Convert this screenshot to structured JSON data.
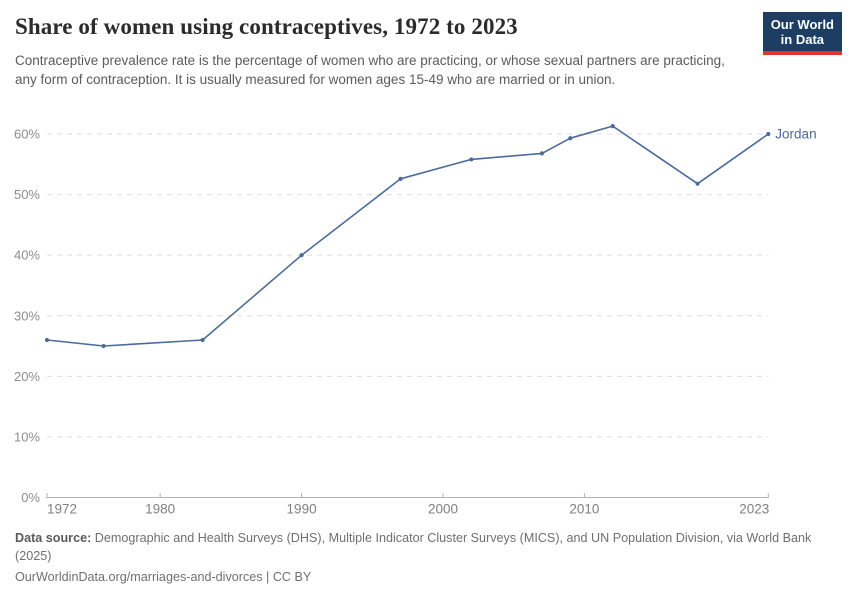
{
  "header": {
    "title": "Share of women using contraceptives, 1972 to 2023",
    "subtitle": "Contraceptive prevalence rate is the percentage of women who are practicing, or whose sexual partners are practicing, any form of contraception. It is usually measured for women ages 15-49 who are married or in union.",
    "logo": {
      "line1": "Our World",
      "line2": "in Data",
      "bg_color": "#1d3d63",
      "accent_color": "#e0342f"
    }
  },
  "chart_data": {
    "type": "line",
    "title": "Share of women using contraceptives, 1972 to 2023",
    "x": [
      1972,
      1976,
      1983,
      1990,
      1997,
      2002,
      2007,
      2009,
      2012,
      2018,
      2023
    ],
    "series": [
      {
        "name": "Jordan",
        "color": "#4c6a9c",
        "values": [
          26,
          25,
          26,
          40,
          52.6,
          55.8,
          56.8,
          59.3,
          61.3,
          51.8,
          60
        ]
      }
    ],
    "xlabel": "",
    "ylabel": "",
    "x_ticks": [
      1972,
      1980,
      1990,
      2000,
      2010,
      2023
    ],
    "y_ticks": [
      0,
      10,
      20,
      30,
      40,
      50,
      60
    ],
    "y_tick_suffix": "%",
    "xlim": [
      1972,
      2023
    ],
    "ylim": [
      0,
      60
    ],
    "grid": "horizontal-dashed",
    "legend": "line-end-label",
    "colors": {
      "gridline": "#dedede",
      "axis": "#b3b3b3",
      "y_tick_label": "#8c8c8c",
      "x_tick_label": "#808080"
    }
  },
  "footer": {
    "source_bold": "Data source:",
    "source_text": "Demographic and Health Surveys (DHS), Multiple Indicator Cluster Surveys (MICS), and UN Population Division, via World Bank (2025)",
    "url": "OurWorldinData.org/marriages-and-divorces",
    "separator": " | ",
    "license": "CC BY"
  }
}
